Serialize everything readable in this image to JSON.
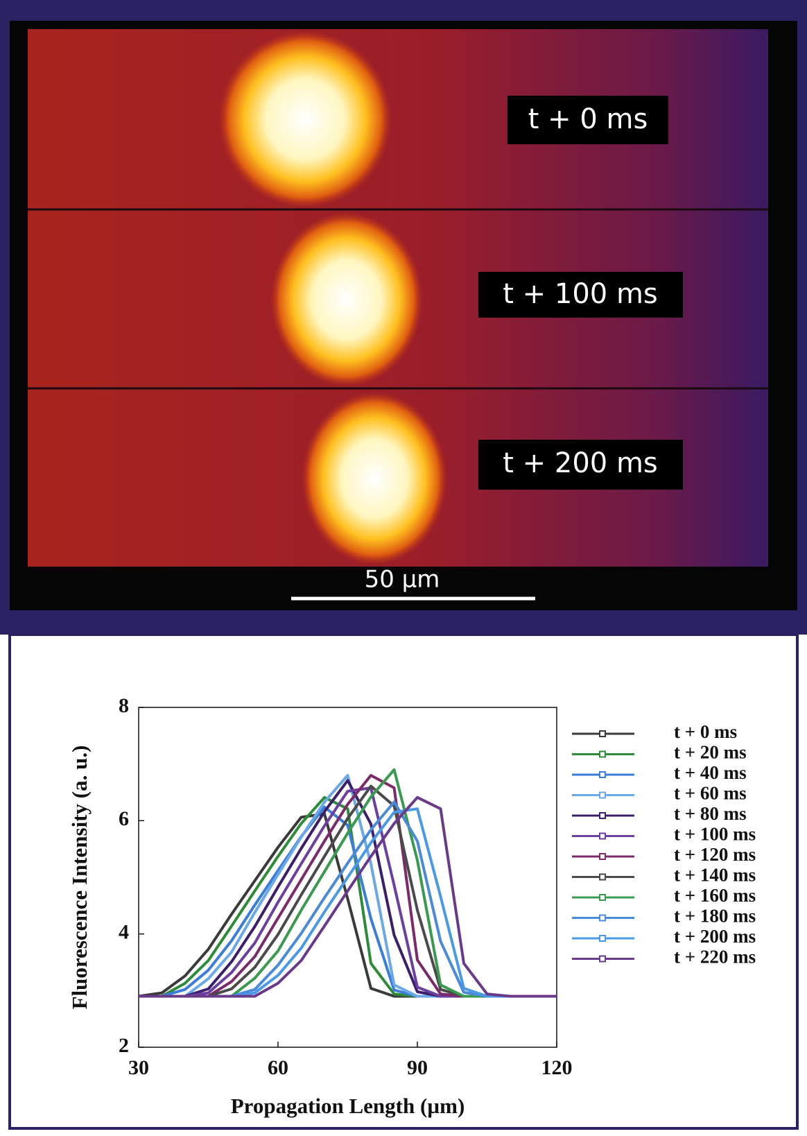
{
  "image_panel": {
    "labels": [
      "t + 0 ms",
      "t + 100 ms",
      "t + 200 ms"
    ],
    "scale_bar": "50 µm"
  },
  "chart_data": {
    "type": "line",
    "x_label": "Propagation Length (µm)",
    "y_label": "Fluorescence Intensity (a. u.)",
    "x": [
      30,
      35,
      40,
      45,
      50,
      55,
      60,
      65,
      70,
      75,
      80,
      85,
      90,
      95,
      100,
      105,
      110,
      115,
      120
    ],
    "xlim": [
      30,
      120
    ],
    "xticks": [
      30,
      60,
      90,
      120
    ],
    "ylim": [
      2,
      8
    ],
    "yticks": [
      2,
      4,
      6,
      8
    ],
    "grid": false,
    "legend": "right",
    "series": [
      {
        "name": "t + 0 ms",
        "color": "#3a3a3a",
        "values": [
          2.9,
          2.96,
          3.26,
          3.73,
          4.35,
          4.94,
          5.53,
          6.06,
          6.12,
          4.62,
          3.04,
          2.9,
          2.9,
          2.9,
          2.9,
          2.9,
          2.9,
          2.9,
          2.9
        ]
      },
      {
        "name": "t + 20 ms",
        "color": "#2e8b3a",
        "values": [
          2.9,
          2.9,
          3.13,
          3.53,
          4.14,
          4.76,
          5.37,
          5.95,
          6.41,
          6.21,
          3.48,
          2.94,
          2.9,
          2.9,
          2.9,
          2.9,
          2.9,
          2.9,
          2.9
        ]
      },
      {
        "name": "t + 40 ms",
        "color": "#3b7dd8",
        "values": [
          2.9,
          2.9,
          3.02,
          3.36,
          3.88,
          4.51,
          5.12,
          5.72,
          6.24,
          5.92,
          4.27,
          3.01,
          2.9,
          2.9,
          2.9,
          2.9,
          2.9,
          2.9,
          2.9
        ]
      },
      {
        "name": "t + 60 ms",
        "color": "#6aa8e6",
        "values": [
          2.9,
          2.9,
          2.9,
          3.21,
          3.68,
          4.38,
          5.05,
          5.71,
          6.33,
          6.8,
          5.24,
          3.1,
          2.9,
          2.9,
          2.9,
          2.9,
          2.9,
          2.9,
          2.9
        ]
      },
      {
        "name": "t + 80 ms",
        "color": "#3b1f6b",
        "values": [
          2.9,
          2.9,
          2.9,
          3.03,
          3.51,
          4.13,
          4.83,
          5.51,
          6.16,
          6.71,
          5.94,
          3.98,
          2.98,
          2.9,
          2.9,
          2.9,
          2.9,
          2.9,
          2.9
        ]
      },
      {
        "name": "t + 100 ms",
        "color": "#6b3fa0",
        "values": [
          2.9,
          2.9,
          2.9,
          2.96,
          3.32,
          3.84,
          4.56,
          5.24,
          5.91,
          6.52,
          6.58,
          4.86,
          3.06,
          2.9,
          2.9,
          2.9,
          2.9,
          2.9,
          2.9
        ]
      },
      {
        "name": "t + 120 ms",
        "color": "#7b2a6a",
        "values": [
          2.9,
          2.9,
          2.9,
          2.9,
          3.16,
          3.6,
          4.28,
          4.96,
          5.64,
          6.29,
          6.8,
          6.58,
          3.54,
          2.94,
          2.9,
          2.9,
          2.9,
          2.9,
          2.9
        ]
      },
      {
        "name": "t + 140 ms",
        "color": "#4a4a4a",
        "values": [
          2.9,
          2.9,
          2.9,
          2.9,
          3.03,
          3.41,
          3.99,
          4.69,
          5.37,
          6.04,
          6.61,
          6.26,
          4.42,
          3.02,
          2.9,
          2.9,
          2.9,
          2.9,
          2.9
        ]
      },
      {
        "name": "t + 160 ms",
        "color": "#3a9a50",
        "values": [
          2.9,
          2.9,
          2.9,
          2.9,
          2.9,
          3.22,
          3.7,
          4.42,
          5.1,
          5.78,
          6.42,
          6.9,
          5.3,
          3.1,
          2.9,
          2.9,
          2.9,
          2.9,
          2.9
        ]
      },
      {
        "name": "t + 180 ms",
        "color": "#4a8ad8",
        "values": [
          2.9,
          2.9,
          2.9,
          2.9,
          2.9,
          3.02,
          3.45,
          4.01,
          4.64,
          5.25,
          5.84,
          6.33,
          5.64,
          3.87,
          2.97,
          2.9,
          2.9,
          2.9,
          2.9
        ]
      },
      {
        "name": "t + 200 ms",
        "color": "#4a98e8",
        "values": [
          2.9,
          2.9,
          2.9,
          2.9,
          2.9,
          2.96,
          3.27,
          3.75,
          4.39,
          5.0,
          5.61,
          6.15,
          6.21,
          4.66,
          3.04,
          2.9,
          2.9,
          2.9,
          2.9
        ]
      },
      {
        "name": "t + 220 ms",
        "color": "#6a3a8a",
        "values": [
          2.9,
          2.9,
          2.9,
          2.9,
          2.9,
          2.9,
          3.13,
          3.53,
          4.14,
          4.76,
          5.37,
          5.95,
          6.41,
          6.21,
          3.48,
          2.94,
          2.9,
          2.9,
          2.9
        ]
      }
    ]
  }
}
